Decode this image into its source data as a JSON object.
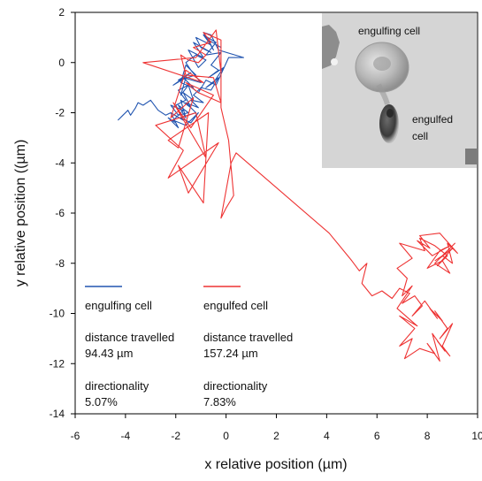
{
  "chart_data": {
    "type": "line",
    "xlabel": "x relative position (µm)",
    "ylabel": "y relative position ((µm)",
    "xlim": [
      -6,
      10
    ],
    "ylim": [
      -14,
      2
    ],
    "xticks": [
      -6,
      -4,
      -2,
      0,
      2,
      4,
      6,
      8,
      10
    ],
    "xtick_labels": [
      "-6",
      "-4",
      "-2",
      "0",
      "2",
      "4",
      "6",
      "8",
      "10"
    ],
    "yticks": [
      2,
      0,
      -2,
      -4,
      -6,
      -8,
      -10,
      -12,
      -14
    ],
    "ytick_labels": [
      "2",
      "0",
      "-2",
      "-4",
      "-6",
      "-8",
      "-10",
      "-12",
      "-14"
    ],
    "grid": false,
    "legend_position": "bottom-left",
    "series": [
      {
        "name": "engulfing cell",
        "color": "#2255b0",
        "distance_label": "distance travelled",
        "distance_value": "94.43 µm",
        "directionality_label": "directionality",
        "directionality_value": "5.07%",
        "x": [
          -4.3,
          -4.1,
          -3.9,
          -3.8,
          -3.6,
          -3.5,
          -3.3,
          -3.0,
          -2.7,
          -2.4,
          -2.2,
          -2.0,
          -2.3,
          -1.9,
          -2.2,
          -1.7,
          -2.0,
          -1.6,
          -1.9,
          -1.5,
          -1.8,
          -1.6,
          -2.1,
          -1.4,
          -1.9,
          -1.2,
          -1.6,
          -1.8,
          -1.3,
          -1.7,
          -1.0,
          -1.4,
          -1.6,
          -1.2,
          -0.8,
          -1.1,
          -1.5,
          -0.9,
          -1.3,
          -0.6,
          -1.0,
          -1.2,
          -0.6,
          -0.9,
          -0.4,
          -0.8,
          -0.2,
          -0.6,
          -0.3,
          -0.7,
          -0.1,
          -0.5,
          -0.8,
          -0.3,
          -0.6,
          -1.0,
          -1.3,
          -0.9,
          -1.4,
          -1.1,
          -1.6,
          -1.2,
          -1.8,
          -1.4,
          -1.1,
          -1.6,
          -2.1,
          -1.7,
          -2.2,
          -1.9,
          -1.5,
          -1.9,
          -1.6,
          -1.8,
          -1.4,
          -1.7,
          -1.3,
          -1.5,
          -1.1,
          -0.8,
          -0.4,
          0.1,
          0.7,
          -0.3,
          -0.6,
          -0.9,
          -0.5,
          -0.7,
          -0.2
        ],
        "y": [
          -2.3,
          -2.1,
          -1.9,
          -2.1,
          -1.8,
          -1.6,
          -1.7,
          -1.5,
          -1.9,
          -2.1,
          -2.0,
          -2.4,
          -2.2,
          -2.6,
          -2.0,
          -2.3,
          -1.7,
          -1.5,
          -1.1,
          -0.9,
          -1.3,
          -0.6,
          -0.9,
          -0.4,
          -0.7,
          -0.5,
          -0.1,
          -0.8,
          -1.0,
          -0.6,
          -0.8,
          -0.3,
          0.0,
          0.3,
          0.1,
          -0.2,
          0.5,
          0.2,
          0.8,
          0.4,
          0.6,
          1.0,
          0.7,
          1.1,
          0.8,
          0.3,
          0.4,
          -0.1,
          -0.3,
          -0.6,
          -0.2,
          -0.8,
          -1.0,
          -0.6,
          -1.1,
          -1.0,
          -1.3,
          -1.6,
          -1.5,
          -1.8,
          -1.6,
          -2.0,
          -2.2,
          -2.4,
          -2.0,
          -2.5,
          -2.3,
          -1.9,
          -1.7,
          -2.1,
          -2.0,
          -1.7,
          -2.2,
          -1.5,
          -1.8,
          -1.2,
          -1.5,
          -0.9,
          -1.2,
          -0.7,
          -0.9,
          0.2,
          0.2,
          0.5,
          1.1,
          1.2,
          0.5,
          0.9,
          0.6
        ]
      },
      {
        "name": "engulfed cell",
        "color": "#ee3333",
        "distance_label": "distance travelled",
        "distance_value": "157.24 µm",
        "directionality_label": "directionality",
        "directionality_value": "7.83%",
        "x": [
          -0.2,
          -0.4,
          -1.2,
          -3.3,
          -0.9,
          -1.6,
          -2.2,
          -1.3,
          -1.9,
          -2.3,
          -0.7,
          -0.9,
          -1.9,
          -1.5,
          -0.3,
          -2.3,
          -1.7,
          -2.8,
          -1.2,
          -0.8,
          -2.1,
          -1.4,
          -0.5,
          -1.6,
          -1.1,
          -0.2,
          -0.5,
          -1.6,
          -1.8,
          -1.5,
          -1.1,
          -0.8,
          -1.3,
          -0.6,
          -0.9,
          -0.2,
          -0.2,
          0.1,
          0.3,
          0.0,
          -0.2,
          0.2,
          0.4,
          4.1,
          5.0,
          5.3,
          5.6,
          5.4,
          5.8,
          6.2,
          6.6,
          6.9,
          7.3,
          7.0,
          7.5,
          7.8,
          7.4,
          7.9,
          8.4,
          8.1,
          8.6,
          8.3,
          8.8,
          8.5,
          9.0,
          8.6,
          8.9,
          8.4,
          8.7,
          8.2,
          8.5,
          8.0,
          8.3,
          7.7,
          7.1,
          7.4,
          6.9,
          7.5,
          6.9,
          7.6,
          6.8,
          7.4,
          7.0,
          7.2,
          6.8,
          7.4,
          6.9,
          7.9,
          7.7,
          8.3,
          8.8,
          8.4,
          9.0,
          8.5,
          9.1,
          8.7,
          8.3,
          8.9,
          8.6,
          8.0,
          8.5,
          8.9,
          8.2,
          7.6,
          8.1,
          7.7,
          8.5,
          9.2,
          8.8,
          9.0,
          8.6,
          8.3
        ],
        "y": [
          -0.4,
          1.3,
          0.2,
          0.0,
          -0.8,
          -0.3,
          -2.2,
          -1.4,
          -3.4,
          -3.1,
          -2.0,
          -5.6,
          -4.1,
          -5.2,
          -3.2,
          -4.6,
          -3.5,
          -2.5,
          -2.0,
          -3.8,
          -1.6,
          -2.6,
          -1.3,
          -0.8,
          -1.2,
          -1.6,
          -0.6,
          -0.5,
          0.3,
          0.1,
          0.0,
          0.3,
          0.6,
          0.8,
          1.2,
          0.9,
          -1.8,
          -3.1,
          -5.3,
          -5.8,
          -6.2,
          -4.0,
          -3.6,
          -6.8,
          -7.9,
          -8.3,
          -8.0,
          -8.8,
          -9.3,
          -9.1,
          -9.4,
          -9.0,
          -9.2,
          -9.6,
          -9.3,
          -9.7,
          -10.1,
          -9.5,
          -10.2,
          -9.8,
          -10.3,
          -9.9,
          -10.6,
          -11.0,
          -10.4,
          -11.3,
          -11.7,
          -11.1,
          -11.5,
          -10.8,
          -11.9,
          -11.2,
          -11.6,
          -11.4,
          -11.8,
          -11.0,
          -11.3,
          -10.6,
          -10.1,
          -10.5,
          -9.8,
          -8.9,
          -9.3,
          -8.6,
          -8.2,
          -7.8,
          -7.2,
          -7.5,
          -7.0,
          -7.3,
          -7.7,
          -8.1,
          -7.4,
          -7.8,
          -7.2,
          -7.6,
          -8.0,
          -8.4,
          -7.9,
          -8.2,
          -7.5,
          -7.3,
          -7.7,
          -7.1,
          -7.4,
          -6.9,
          -6.8,
          -7.6,
          -7.2,
          -8.0,
          -7.7,
          -7.9
        ]
      }
    ]
  },
  "inset": {
    "engulfing_label": "engulfing cell",
    "engulfed_label_line1": "engulfed",
    "engulfed_label_line2": "cell"
  }
}
